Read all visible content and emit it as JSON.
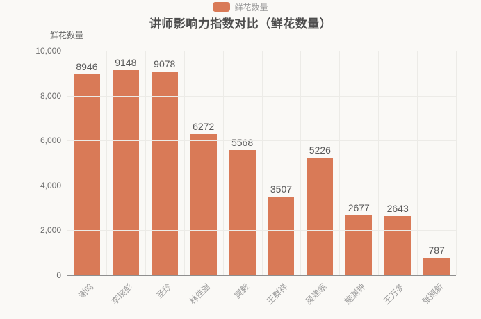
{
  "legend": {
    "label": "鲜花数量",
    "color": "#d97a57"
  },
  "title": "讲师影响力指数对比（鲜花数量）",
  "y_axis_name": "鲜花数量",
  "chart_data": {
    "type": "bar",
    "title": "讲师影响力指数对比（鲜花数量）",
    "ylabel": "鲜花数量",
    "legend_entries": [
      "鲜花数量"
    ],
    "legend_position": "top",
    "categories": [
      "谢鸣",
      "李琬彭",
      "圣珍",
      "林佳澍",
      "窦毅",
      "王群祥",
      "吴建瓴",
      "施渊钟",
      "王万多",
      "张照新"
    ],
    "values": [
      8946,
      9148,
      9078,
      6272,
      5568,
      3507,
      5226,
      2677,
      2643,
      787
    ],
    "ylim": [
      0,
      10000
    ],
    "ytick_labels": [
      "10,000",
      "8,000",
      "6,000",
      "4,000",
      "2,000",
      "0"
    ],
    "xlabel_rotation_deg": 45,
    "grid": true,
    "bar_color": "#d97a57",
    "background_color": "#faf9f6",
    "gridline_color": "#ecebe7"
  }
}
